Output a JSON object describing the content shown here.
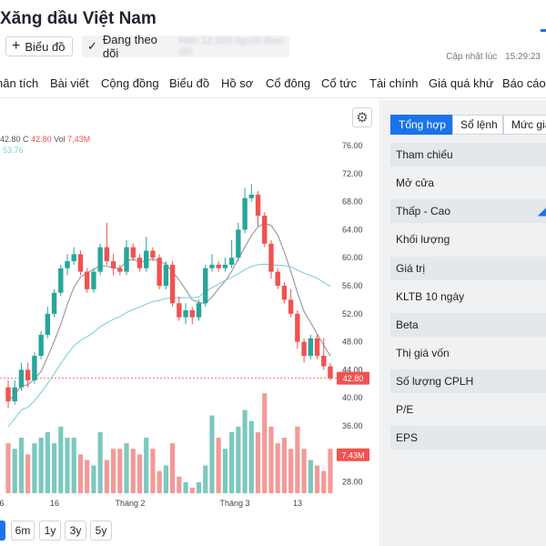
{
  "header": {
    "company": "Xăng dầu Việt Nam",
    "chart_button": "Biểu đồ",
    "follow_button": "Đang theo dõi",
    "follow_note": "Hơn 12.000 người theo dõi",
    "updated_label": "Cập nhật lúc",
    "updated_time": "15:29:23"
  },
  "nav": {
    "tabs": [
      "hân tích",
      "Bài viết",
      "Cộng đồng",
      "Biểu đồ",
      "Hồ sơ",
      "Cổ đông",
      "Cổ tức",
      "Tài chính",
      "Giá quá khứ",
      "Báo cáo"
    ]
  },
  "chart": {
    "legend": {
      "prefix": "42.80",
      "c_label": "C",
      "c_value": "42.80",
      "vol_label": "Vol",
      "vol_value": "7,43M",
      "ma_value": "53.76"
    },
    "last_price_label": "42.80",
    "volume_label": "7.43M",
    "x_labels": [
      "6",
      "16",
      "Tháng 2",
      "Tháng 3",
      "13"
    ]
  },
  "chart_data": {
    "type": "candlestick",
    "y_ticks": [
      76,
      72,
      68,
      64,
      60,
      56,
      52,
      48,
      44,
      40,
      36,
      32,
      28
    ],
    "ylim": [
      26,
      78
    ],
    "last_price": 42.8,
    "candles": [
      [
        41.5,
        39.5,
        42.5,
        38.5
      ],
      [
        39.5,
        41.5,
        42.5,
        39.0
      ],
      [
        41.5,
        44.0,
        45.0,
        41.0
      ],
      [
        44.0,
        42.5,
        45.0,
        41.5
      ],
      [
        42.5,
        46.0,
        46.5,
        42.0
      ],
      [
        46.0,
        49.0,
        49.5,
        45.5
      ],
      [
        49.0,
        52.0,
        53.0,
        48.5
      ],
      [
        52.0,
        55.0,
        55.5,
        51.5
      ],
      [
        55.0,
        58.5,
        59.0,
        54.5
      ],
      [
        58.5,
        59.5,
        60.5,
        57.5
      ],
      [
        59.5,
        60.5,
        61.5,
        59.0
      ],
      [
        60.5,
        58.0,
        61.0,
        57.5
      ],
      [
        58.0,
        55.5,
        58.5,
        55.0
      ],
      [
        55.5,
        58.0,
        58.5,
        55.0
      ],
      [
        58.0,
        61.5,
        62.0,
        57.5
      ],
      [
        61.5,
        59.5,
        65.0,
        59.0
      ],
      [
        59.5,
        58.5,
        60.5,
        57.5
      ],
      [
        58.5,
        58.0,
        59.0,
        57.5
      ],
      [
        58.0,
        61.5,
        62.5,
        57.5
      ],
      [
        61.5,
        60.0,
        62.0,
        59.5
      ],
      [
        60.0,
        58.5,
        60.5,
        58.0
      ],
      [
        58.5,
        61.0,
        63.0,
        58.0
      ],
      [
        61.0,
        60.0,
        61.5,
        59.5
      ],
      [
        60.0,
        56.0,
        60.5,
        55.5
      ],
      [
        56.0,
        59.0,
        59.5,
        55.5
      ],
      [
        59.0,
        53.5,
        59.5,
        53.0
      ],
      [
        53.5,
        51.5,
        54.5,
        51.0
      ],
      [
        51.5,
        52.5,
        53.5,
        50.5
      ],
      [
        52.5,
        51.5,
        53.0,
        50.5
      ],
      [
        51.5,
        53.5,
        54.0,
        51.0
      ],
      [
        53.5,
        58.5,
        59.0,
        53.0
      ],
      [
        58.5,
        59.0,
        60.5,
        58.0
      ],
      [
        59.0,
        58.5,
        59.5,
        58.0
      ],
      [
        58.5,
        59.0,
        60.0,
        58.0
      ],
      [
        59.0,
        60.0,
        62.5,
        58.5
      ],
      [
        60.0,
        64.0,
        65.0,
        59.5
      ],
      [
        64.0,
        68.5,
        70.0,
        63.5
      ],
      [
        68.5,
        69.0,
        70.5,
        68.0
      ],
      [
        69.0,
        66.0,
        69.5,
        64.5
      ],
      [
        66.0,
        62.0,
        66.5,
        61.5
      ],
      [
        62.0,
        58.0,
        62.5,
        57.0
      ],
      [
        58.0,
        56.0,
        58.5,
        55.5
      ],
      [
        56.0,
        54.0,
        56.5,
        53.5
      ],
      [
        54.0,
        52.0,
        55.5,
        51.5
      ],
      [
        52.0,
        48.0,
        52.5,
        47.0
      ],
      [
        48.0,
        46.0,
        48.5,
        45.0
      ],
      [
        46.0,
        48.5,
        49.0,
        45.5
      ],
      [
        48.5,
        46.0,
        49.0,
        45.5
      ],
      [
        46.0,
        44.5,
        48.5,
        44.0
      ],
      [
        44.5,
        42.8,
        45.0,
        42.5
      ]
    ],
    "volumes": [
      0.45,
      0.4,
      0.5,
      0.35,
      0.45,
      0.5,
      0.55,
      0.45,
      0.6,
      0.5,
      0.5,
      0.35,
      0.3,
      0.25,
      0.55,
      0.3,
      0.4,
      0.4,
      0.45,
      0.4,
      0.35,
      0.5,
      0.4,
      0.2,
      0.25,
      0.45,
      0.15,
      0.1,
      0.05,
      0.1,
      0.25,
      0.7,
      0.5,
      0.4,
      0.55,
      0.6,
      0.75,
      0.65,
      0.55,
      0.9,
      0.6,
      0.45,
      0.5,
      0.4,
      0.6,
      0.4,
      0.3,
      0.25,
      0.2,
      0.4
    ]
  },
  "range_buttons": [
    "",
    "6m",
    "1y",
    "3y",
    "5y"
  ],
  "side": {
    "tabs": [
      "Tổng hợp",
      "Sổ lệnh",
      "Mức giá"
    ],
    "rows": [
      "Tham chiếu",
      "Mở cửa",
      "Thấp - Cao",
      "Khối lượng",
      "Giá trị",
      "KLTB 10 ngày",
      "Beta",
      "Thị giá vốn",
      "Số lượng CPLH",
      "P/E",
      "EPS"
    ]
  },
  "colors": {
    "up": "#26a69a",
    "down": "#ef5350",
    "ma_fast": "#9e9aa8",
    "ma_slow": "#7fd0d8",
    "accent": "#1a73e8"
  }
}
